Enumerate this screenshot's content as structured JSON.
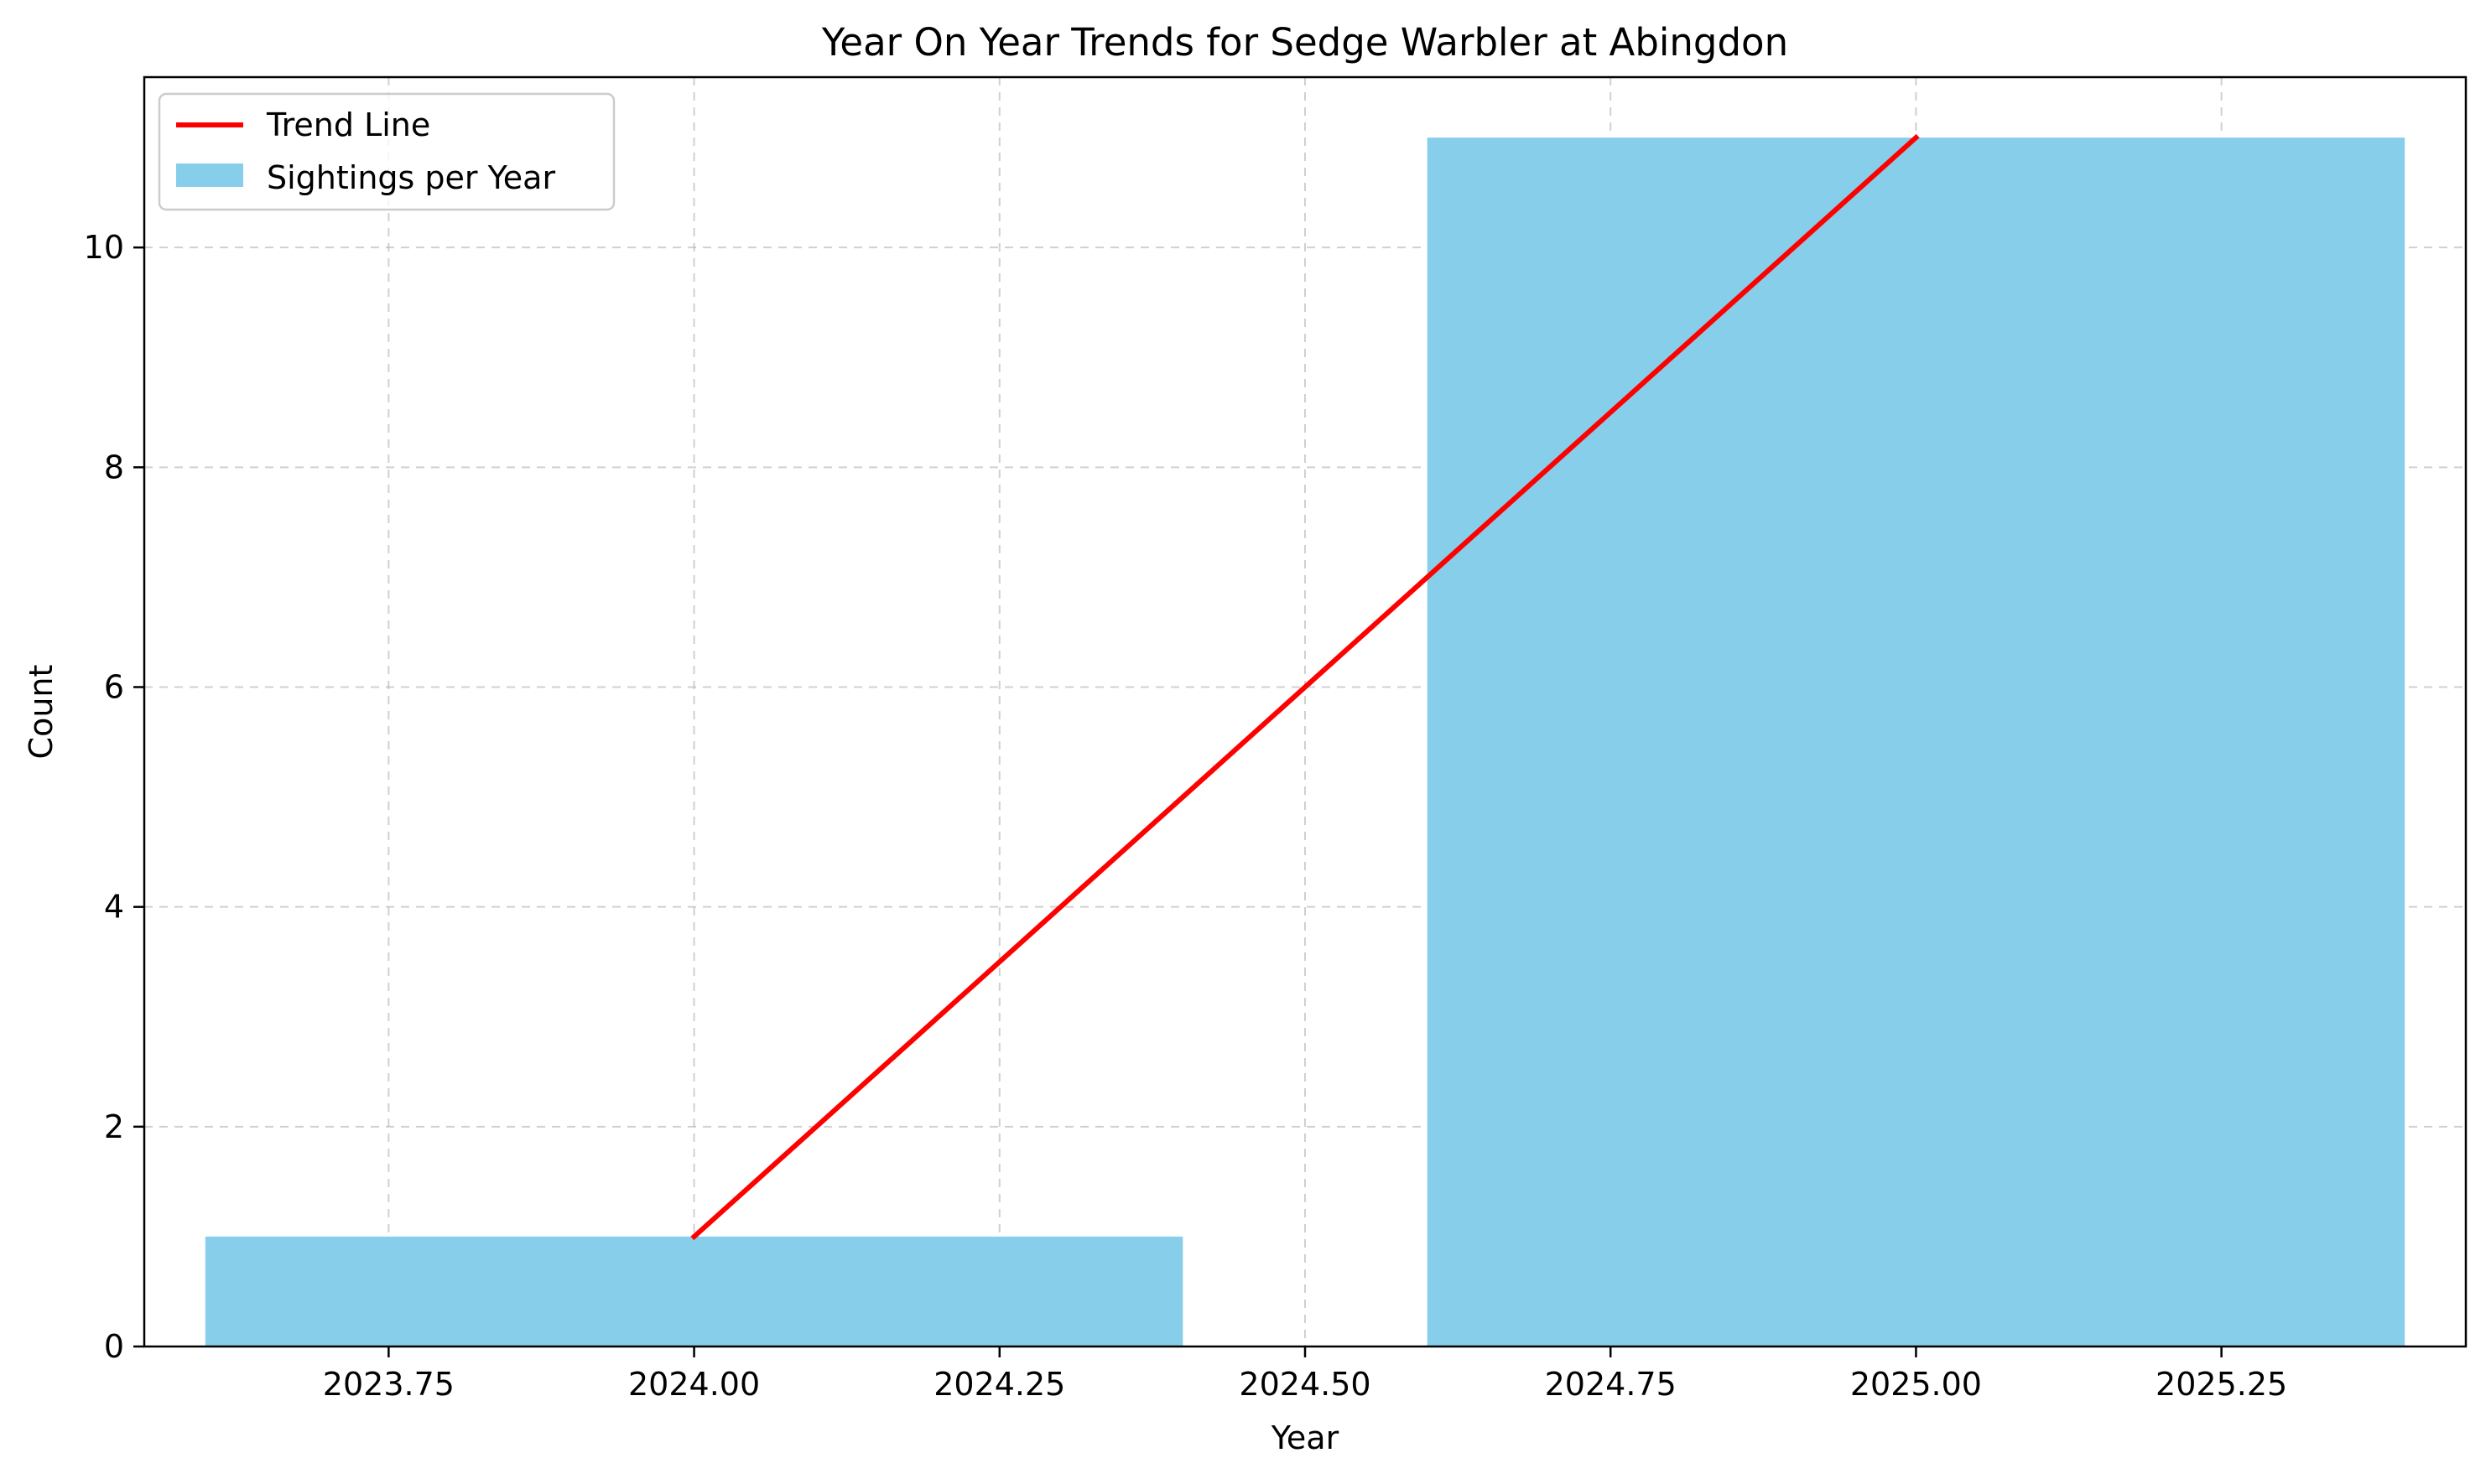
{
  "chart_data": {
    "type": "bar",
    "title": "Year On Year Trends for Sedge Warbler at Abingdon",
    "xlabel": "Year",
    "ylabel": "Count",
    "xlim": [
      2023.55,
      2025.45
    ],
    "ylim": [
      0,
      11.55
    ],
    "xticks": [
      2023.75,
      2024.0,
      2024.25,
      2024.5,
      2024.75,
      2025.0,
      2025.25
    ],
    "xtick_labels": [
      "2023.75",
      "2024.00",
      "2024.25",
      "2024.50",
      "2024.75",
      "2025.00",
      "2025.25"
    ],
    "yticks": [
      0,
      2,
      4,
      6,
      8,
      10
    ],
    "ytick_labels": [
      "0",
      "2",
      "4",
      "6",
      "8",
      "10"
    ],
    "grid": true,
    "legend_position": "top-left",
    "bars": {
      "name": "Sightings per Year",
      "x": [
        2024,
        2025
      ],
      "values": [
        1,
        11
      ],
      "width": 0.8,
      "color": "#87ceeb"
    },
    "trend_line": {
      "name": "Trend Line",
      "x": [
        2024,
        2025
      ],
      "y": [
        1,
        11
      ],
      "color": "#ff0000"
    }
  }
}
